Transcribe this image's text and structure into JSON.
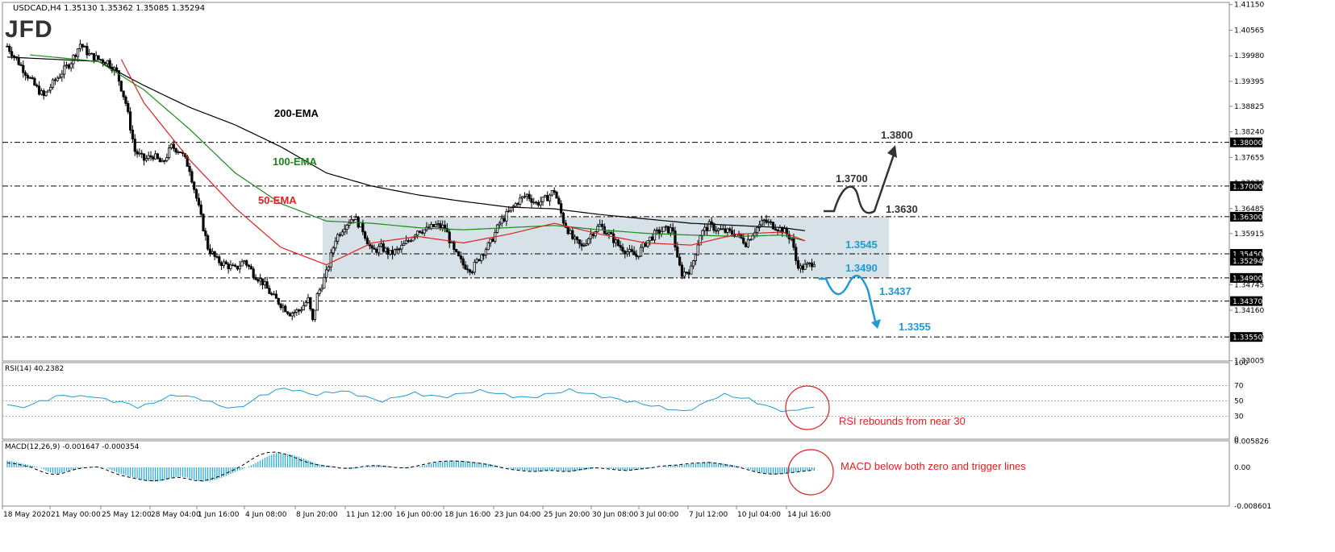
{
  "header": {
    "symbol_info": "USDCAD,H4  1.35130 1.35362 1.35085 1.35294",
    "logo": "JFD"
  },
  "chart_data": [
    {
      "type": "candlestick",
      "title": "USDCAD,H4  1.35130 1.35362 1.35085 1.35294",
      "ylim": [
        1.33,
        1.412
      ],
      "y_ticks": [
        "1.41150",
        "1.40565",
        "1.39980",
        "1.39395",
        "1.38825",
        "1.38240",
        "1.37655",
        "1.37070",
        "1.36485",
        "1.35915",
        "1.35330",
        "1.34745",
        "1.34160",
        "1.33575",
        "1.33005"
      ],
      "x_ticks": [
        "18 May 2020",
        "21 May 00:00",
        "25 May 12:00",
        "28 May 04:00",
        "1 Jun 16:00",
        "4 Jun 08:00",
        "8 Jun 20:00",
        "11 Jun 12:00",
        "16 Jun 00:00",
        "18 Jun 16:00",
        "23 Jun 04:00",
        "25 Jun 20:00",
        "30 Jun 08:00",
        "3 Jul 00:00",
        "7 Jul 12:00",
        "10 Jul 04:00",
        "14 Jul 16:00"
      ],
      "close_path": [
        [
          0,
          1.402
        ],
        [
          4,
          1.399
        ],
        [
          8,
          1.396
        ],
        [
          12,
          1.393
        ],
        [
          16,
          1.3905
        ],
        [
          20,
          1.3935
        ],
        [
          24,
          1.396
        ],
        [
          28,
          1.3985
        ],
        [
          32,
          1.4025
        ],
        [
          36,
          1.4
        ],
        [
          40,
          1.399
        ],
        [
          44,
          1.3985
        ],
        [
          48,
          1.396
        ],
        [
          52,
          1.389
        ],
        [
          56,
          1.378
        ],
        [
          60,
          1.376
        ],
        [
          64,
          1.377
        ],
        [
          68,
          1.375
        ],
        [
          72,
          1.379
        ],
        [
          76,
          1.378
        ],
        [
          80,
          1.374
        ],
        [
          84,
          1.365
        ],
        [
          88,
          1.356
        ],
        [
          92,
          1.353
        ],
        [
          96,
          1.352
        ],
        [
          100,
          1.351
        ],
        [
          104,
          1.353
        ],
        [
          108,
          1.35
        ],
        [
          112,
          1.348
        ],
        [
          116,
          1.345
        ],
        [
          120,
          1.343
        ],
        [
          124,
          1.341
        ],
        [
          128,
          1.3415
        ],
        [
          132,
          1.344
        ],
        [
          134,
          1.339
        ],
        [
          136,
          1.345
        ],
        [
          140,
          1.35
        ],
        [
          144,
          1.358
        ],
        [
          148,
          1.361
        ],
        [
          152,
          1.363
        ],
        [
          156,
          1.36
        ],
        [
          160,
          1.355
        ],
        [
          164,
          1.356
        ],
        [
          168,
          1.3545
        ],
        [
          172,
          1.3555
        ],
        [
          176,
          1.3575
        ],
        [
          180,
          1.36
        ],
        [
          184,
          1.36
        ],
        [
          188,
          1.361
        ],
        [
          192,
          1.3605
        ],
        [
          196,
          1.355
        ],
        [
          200,
          1.352
        ],
        [
          204,
          1.351
        ],
        [
          208,
          1.3545
        ],
        [
          212,
          1.357
        ],
        [
          216,
          1.3615
        ],
        [
          220,
          1.364
        ],
        [
          224,
          1.3665
        ],
        [
          228,
          1.368
        ],
        [
          232,
          1.366
        ],
        [
          236,
          1.367
        ],
        [
          240,
          1.369
        ],
        [
          244,
          1.362
        ],
        [
          248,
          1.358
        ],
        [
          252,
          1.356
        ],
        [
          256,
          1.359
        ],
        [
          260,
          1.361
        ],
        [
          264,
          1.359
        ],
        [
          268,
          1.3565
        ],
        [
          272,
          1.355
        ],
        [
          276,
          1.354
        ],
        [
          280,
          1.357
        ],
        [
          284,
          1.359
        ],
        [
          288,
          1.36
        ],
        [
          292,
          1.36
        ],
        [
          294,
          1.353
        ],
        [
          296,
          1.35
        ],
        [
          300,
          1.351
        ],
        [
          304,
          1.359
        ],
        [
          308,
          1.361
        ],
        [
          312,
          1.36
        ],
        [
          316,
          1.3595
        ],
        [
          320,
          1.359
        ],
        [
          324,
          1.357
        ],
        [
          328,
          1.36
        ],
        [
          332,
          1.362
        ],
        [
          336,
          1.361
        ],
        [
          340,
          1.36
        ],
        [
          344,
          1.358
        ],
        [
          346,
          1.353
        ],
        [
          348,
          1.3512
        ],
        [
          352,
          1.352
        ],
        [
          354,
          1.3529
        ]
      ],
      "ema_200": [
        [
          0,
          1.3995
        ],
        [
          40,
          1.3985
        ],
        [
          60,
          1.393
        ],
        [
          80,
          1.388
        ],
        [
          100,
          1.384
        ],
        [
          120,
          1.379
        ],
        [
          140,
          1.373
        ],
        [
          160,
          1.37
        ],
        [
          180,
          1.368
        ],
        [
          200,
          1.3665
        ],
        [
          220,
          1.3652
        ],
        [
          240,
          1.3648
        ],
        [
          260,
          1.3635
        ],
        [
          280,
          1.3625
        ],
        [
          300,
          1.3615
        ],
        [
          320,
          1.361
        ],
        [
          340,
          1.3605
        ],
        [
          350,
          1.3598
        ]
      ],
      "ema_100": [
        [
          10,
          1.4
        ],
        [
          40,
          1.3985
        ],
        [
          60,
          1.392
        ],
        [
          80,
          1.383
        ],
        [
          100,
          1.373
        ],
        [
          120,
          1.366
        ],
        [
          140,
          1.362
        ],
        [
          160,
          1.3615
        ],
        [
          180,
          1.3605
        ],
        [
          200,
          1.36
        ],
        [
          220,
          1.3605
        ],
        [
          240,
          1.361
        ],
        [
          260,
          1.36
        ],
        [
          280,
          1.3592
        ],
        [
          300,
          1.3588
        ],
        [
          320,
          1.3585
        ],
        [
          340,
          1.3588
        ],
        [
          350,
          1.3575
        ]
      ],
      "ema_50": [
        [
          50,
          1.399
        ],
        [
          60,
          1.389
        ],
        [
          80,
          1.376
        ],
        [
          100,
          1.365
        ],
        [
          120,
          1.356
        ],
        [
          140,
          1.352
        ],
        [
          150,
          1.3545
        ],
        [
          160,
          1.357
        ],
        [
          180,
          1.3585
        ],
        [
          200,
          1.357
        ],
        [
          220,
          1.359
        ],
        [
          240,
          1.3615
        ],
        [
          260,
          1.359
        ],
        [
          280,
          1.357
        ],
        [
          300,
          1.3565
        ],
        [
          320,
          1.359
        ],
        [
          340,
          1.3595
        ],
        [
          350,
          1.3575
        ]
      ],
      "series": [
        {
          "name": "200-EMA",
          "color": "#000000"
        },
        {
          "name": "100-EMA",
          "color": "#1a8a1a"
        },
        {
          "name": "50-EMA",
          "color": "#e02020"
        }
      ],
      "levels": [
        {
          "value": 1.38,
          "label": "1.3800",
          "tag": "1.38000"
        },
        {
          "value": 1.37,
          "label": "1.3700",
          "tag": "1.37000"
        },
        {
          "value": 1.363,
          "label": "1.3630",
          "tag": "1.36300"
        },
        {
          "value": 1.3545,
          "label": "1.3545",
          "tag": "1.35450"
        },
        {
          "value": 1.349,
          "label": "1.3490",
          "tag": "1.34900"
        },
        {
          "value": 1.3437,
          "label": "1.3437",
          "tag": "1.34370"
        },
        {
          "value": 1.3355,
          "label": "1.3355",
          "tag": "1.33550"
        }
      ],
      "current_price_tag": "1.35294",
      "range_box": {
        "top": 1.363,
        "bottom": 1.349
      },
      "scenario_colors": {
        "up": "#333333",
        "down": "#1e9ad6"
      }
    },
    {
      "type": "line",
      "title": "RSI(14) 40.2382",
      "ylim": [
        0,
        100
      ],
      "y_ticks": [
        100,
        70,
        50,
        30,
        0
      ],
      "values": [
        45,
        42,
        43,
        44,
        50,
        52,
        55,
        58,
        56,
        55,
        57,
        54,
        52,
        50,
        48,
        46,
        42,
        44,
        48,
        52,
        56,
        58,
        56,
        54,
        52,
        48,
        44,
        42,
        40,
        44,
        50,
        56,
        60,
        64,
        66,
        65,
        62,
        60,
        58,
        60,
        62,
        63,
        61,
        58,
        55,
        52,
        50,
        52,
        56,
        58,
        60,
        58,
        57,
        55,
        56,
        58,
        60,
        62,
        63,
        62,
        60,
        58,
        56,
        55,
        54,
        56,
        58,
        60,
        62,
        64,
        62,
        60,
        58,
        56,
        54,
        52,
        50,
        48,
        46,
        44,
        42,
        40,
        38,
        36,
        40,
        44,
        50,
        55,
        58,
        56,
        54,
        52,
        48,
        44,
        40,
        38,
        36,
        38,
        42,
        40
      ],
      "annotation": "RSI rebounds from near 30",
      "annotation_color": "#e02020"
    },
    {
      "type": "histogram",
      "title": "MACD(12,26,9) -0.001647 -0.000354",
      "ylim": [
        -0.0086,
        0.0059
      ],
      "y_ticks": [
        "0.005826",
        "0.00",
        "-0.008601"
      ],
      "hist": [
        0.0015,
        0.0012,
        0.0008,
        0.0004,
        0.0,
        -0.001,
        -0.0015,
        -0.001,
        -0.0005,
        -0.0002,
        0.0,
        0.0002,
        0.0,
        -0.0008,
        -0.0015,
        -0.002,
        -0.0025,
        -0.003,
        -0.0032,
        -0.003,
        -0.0025,
        -0.002,
        -0.0022,
        -0.0028,
        -0.0032,
        -0.003,
        -0.0025,
        -0.0018,
        -0.001,
        -0.0003,
        0.0005,
        0.0015,
        0.0025,
        0.0032,
        0.003,
        0.0028,
        0.0022,
        0.0015,
        0.0008,
        0.0004,
        0.0002,
        0.0,
        -0.0004,
        -0.0002,
        0.0002,
        0.0005,
        0.0004,
        0.0002,
        0.0,
        -0.0003,
        0.0,
        0.0004,
        0.0008,
        0.0012,
        0.0014,
        0.0015,
        0.0014,
        0.0012,
        0.001,
        0.0008,
        0.0004,
        0.0,
        -0.0004,
        -0.0006,
        -0.0008,
        -0.001,
        -0.0008,
        -0.0006,
        -0.0008,
        -0.001,
        -0.0008,
        -0.0005,
        -0.0002,
        0.0,
        -0.0003,
        -0.0005,
        -0.0008,
        -0.0006,
        -0.0004,
        -0.0002,
        0.0,
        0.0003,
        0.0005,
        0.0006,
        0.0008,
        0.001,
        0.0012,
        0.001,
        0.0008,
        0.0005,
        0.0002,
        -0.0004,
        -0.001,
        -0.0014,
        -0.0016,
        -0.0015,
        -0.0012,
        -0.001,
        -0.0008,
        -0.0006
      ],
      "signal": [
        0.001,
        0.0008,
        0.0004,
        0.0,
        -0.0008,
        -0.0014,
        -0.0016,
        -0.0012,
        -0.0006,
        -0.0002,
        0.0,
        0.0001,
        -0.0004,
        -0.0012,
        -0.0018,
        -0.0022,
        -0.0026,
        -0.0029,
        -0.003,
        -0.0028,
        -0.0024,
        -0.0022,
        -0.0025,
        -0.0029,
        -0.003,
        -0.0026,
        -0.002,
        -0.0012,
        -0.0004,
        0.0006,
        0.0018,
        0.0028,
        0.0033,
        0.0034,
        0.003,
        0.0024,
        0.0016,
        0.001,
        0.0006,
        0.0003,
        0.0001,
        -0.0002,
        -0.0002,
        0.0,
        0.0003,
        0.0004,
        0.0003,
        0.0001,
        -0.0001,
        -0.0001,
        0.0002,
        0.0006,
        0.001,
        0.0013,
        0.0014,
        0.0014,
        0.0013,
        0.0011,
        0.0009,
        0.0006,
        0.0002,
        -0.0002,
        -0.0005,
        -0.0007,
        -0.0009,
        -0.0009,
        -0.0007,
        -0.0007,
        -0.0009,
        -0.0009,
        -0.0006,
        -0.0003,
        -0.0001,
        -0.0002,
        -0.0004,
        -0.0006,
        -0.0007,
        -0.0005,
        -0.0003,
        -0.0001,
        0.0002,
        0.0004,
        0.0005,
        0.0007,
        0.0009,
        0.001,
        0.0011,
        0.0009,
        0.0006,
        0.0003,
        -0.0001,
        -0.0006,
        -0.0011,
        -0.0014,
        -0.0015,
        -0.0014,
        -0.0012,
        -0.001,
        -0.0008,
        -0.0006
      ],
      "annotation": "MACD below both zero and trigger lines",
      "annotation_color": "#e02020",
      "hist_color": "#1eaadf"
    }
  ]
}
